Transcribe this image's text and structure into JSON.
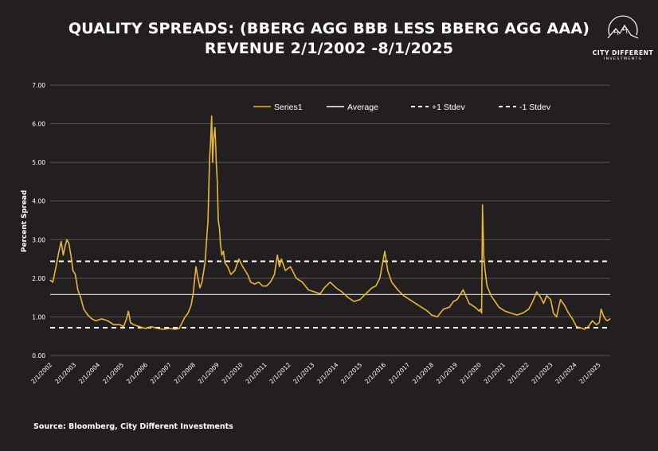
{
  "header": {
    "title_line1": "QUALITY SPREADS: (BBERG AGG BBB LESS BBERG AGG AAA)",
    "title_line2": "REVENUE 2/1/2002 -8/1/2025"
  },
  "logo": {
    "name": "CITY DIFFERENT",
    "sub": "INVESTMENTS"
  },
  "footer": {
    "source": "Source: Bloomberg, City Different Investments"
  },
  "colors": {
    "background": "#231f20",
    "series": "#e8b53a",
    "grid": "#5a5657",
    "reference": "#ffffff"
  },
  "chart_data": {
    "type": "line",
    "title": "QUALITY SPREADS: (BBERG AGG BBB LESS BBERG AGG AAA) REVENUE 2/1/2002 -8/1/2025",
    "xlabel": "",
    "ylabel": "Percent Spread",
    "ylim": [
      0,
      7
    ],
    "xlim": [
      "2/1/2002",
      "8/1/2025"
    ],
    "yticks": [
      "0.00",
      "1.00",
      "2.00",
      "3.00",
      "4.00",
      "5.00",
      "6.00",
      "7.00"
    ],
    "xticks": [
      "2/1/2002",
      "2/1/2003",
      "2/1/2004",
      "2/1/2005",
      "2/1/2006",
      "2/1/2007",
      "2/1/2008",
      "2/1/2009",
      "2/1/2010",
      "2/1/2011",
      "2/1/2012",
      "2/1/2013",
      "2/1/2014",
      "2/1/2015",
      "2/1/2016",
      "2/1/2017",
      "2/1/2018",
      "2/1/2019",
      "2/1/2020",
      "2/1/2021",
      "2/1/2022",
      "2/1/2023",
      "2/1/2024",
      "2/1/2025"
    ],
    "grid": true,
    "legend_position": "top-right",
    "legend": [
      {
        "label": "Series1",
        "style": "solid",
        "color": "#e8b53a"
      },
      {
        "label": "Average",
        "style": "solid",
        "color": "#ffffff"
      },
      {
        "label": "+1 Stdev",
        "style": "dashed",
        "color": "#ffffff"
      },
      {
        "label": "-1 Stdev",
        "style": "dashed",
        "color": "#ffffff"
      }
    ],
    "reference_lines": {
      "Average": 1.58,
      "+1 Stdev": 2.44,
      "-1 Stdev": 0.72
    },
    "series": [
      {
        "name": "Series1",
        "x": [
          "2002-02-01",
          "2002-03-15",
          "2002-05-01",
          "2002-06-15",
          "2002-07-20",
          "2002-08-20",
          "2002-09-20",
          "2002-10-15",
          "2002-11-15",
          "2002-12-15",
          "2003-01-15",
          "2003-02-20",
          "2003-04-01",
          "2003-05-15",
          "2003-07-01",
          "2003-09-01",
          "2003-11-01",
          "2004-01-01",
          "2004-04-01",
          "2004-07-01",
          "2004-10-01",
          "2005-01-01",
          "2005-03-01",
          "2005-04-15",
          "2005-05-15",
          "2005-06-15",
          "2005-08-01",
          "2005-11-01",
          "2006-02-01",
          "2006-05-01",
          "2006-08-01",
          "2006-11-01",
          "2007-02-01",
          "2007-05-01",
          "2007-07-01",
          "2007-08-15",
          "2007-10-01",
          "2007-11-15",
          "2008-01-01",
          "2008-02-01",
          "2008-03-15",
          "2008-04-15",
          "2008-05-15",
          "2008-06-15",
          "2008-08-01",
          "2008-09-15",
          "2008-10-10",
          "2008-10-25",
          "2008-11-10",
          "2008-11-25",
          "2008-12-10",
          "2009-01-01",
          "2009-01-20",
          "2009-02-05",
          "2009-02-20",
          "2009-03-10",
          "2009-03-25",
          "2009-04-15",
          "2009-05-10",
          "2009-06-01",
          "2009-07-15",
          "2009-09-01",
          "2009-11-01",
          "2010-01-01",
          "2010-03-01",
          "2010-05-15",
          "2010-07-01",
          "2010-09-01",
          "2010-11-01",
          "2011-01-01",
          "2011-03-01",
          "2011-05-01",
          "2011-07-01",
          "2011-08-15",
          "2011-09-15",
          "2011-10-15",
          "2011-12-15",
          "2012-03-01",
          "2012-06-01",
          "2012-09-01",
          "2012-12-01",
          "2013-03-01",
          "2013-06-01",
          "2013-08-01",
          "2013-11-01",
          "2014-02-01",
          "2014-05-01",
          "2014-08-01",
          "2014-11-01",
          "2015-02-01",
          "2015-05-01",
          "2015-08-01",
          "2015-10-01",
          "2015-12-01",
          "2016-02-15",
          "2016-04-01",
          "2016-06-01",
          "2016-09-01",
          "2016-12-01",
          "2017-03-01",
          "2017-06-01",
          "2017-09-01",
          "2017-12-01",
          "2018-02-01",
          "2018-05-01",
          "2018-08-01",
          "2018-11-01",
          "2019-01-01",
          "2019-03-01",
          "2019-06-01",
          "2019-09-01",
          "2019-12-01",
          "2020-02-01",
          "2020-02-20",
          "2020-03-10",
          "2020-03-23",
          "2020-04-10",
          "2020-05-01",
          "2020-06-01",
          "2020-08-01",
          "2020-10-01",
          "2020-12-01",
          "2021-03-01",
          "2021-06-01",
          "2021-09-01",
          "2021-12-01",
          "2022-03-01",
          "2022-05-01",
          "2022-07-01",
          "2022-09-01",
          "2022-10-15",
          "2022-12-01",
          "2023-02-01",
          "2023-03-15",
          "2023-05-01",
          "2023-07-01",
          "2023-09-01",
          "2023-11-01",
          "2024-01-01",
          "2024-03-01",
          "2024-05-01",
          "2024-07-01",
          "2024-09-01",
          "2024-11-01",
          "2025-01-01",
          "2025-02-15",
          "2025-03-15",
          "2025-04-15",
          "2025-05-15",
          "2025-06-15",
          "2025-08-01"
        ],
        "values": [
          1.95,
          1.9,
          2.3,
          2.7,
          2.95,
          2.6,
          2.85,
          3.0,
          2.9,
          2.6,
          2.2,
          2.1,
          1.7,
          1.5,
          1.2,
          1.05,
          0.95,
          0.9,
          0.95,
          0.9,
          0.8,
          0.8,
          0.75,
          0.95,
          1.15,
          0.85,
          0.8,
          0.75,
          0.7,
          0.75,
          0.7,
          0.68,
          0.7,
          0.68,
          0.7,
          0.85,
          1.0,
          1.1,
          1.3,
          1.6,
          2.3,
          2.0,
          1.75,
          1.9,
          2.4,
          3.5,
          5.1,
          5.5,
          6.2,
          5.0,
          5.6,
          5.9,
          5.0,
          4.5,
          3.5,
          3.3,
          2.9,
          2.6,
          2.7,
          2.4,
          2.3,
          2.1,
          2.2,
          2.5,
          2.3,
          2.1,
          1.9,
          1.85,
          1.9,
          1.8,
          1.8,
          1.9,
          2.1,
          2.6,
          2.3,
          2.5,
          2.2,
          2.3,
          2.0,
          1.9,
          1.7,
          1.65,
          1.6,
          1.75,
          1.9,
          1.75,
          1.65,
          1.5,
          1.4,
          1.45,
          1.6,
          1.75,
          1.8,
          2.0,
          2.7,
          2.2,
          1.9,
          1.7,
          1.55,
          1.45,
          1.35,
          1.25,
          1.15,
          1.05,
          1.0,
          1.2,
          1.25,
          1.4,
          1.45,
          1.7,
          1.35,
          1.25,
          1.15,
          1.2,
          1.1,
          3.9,
          2.6,
          2.2,
          1.8,
          1.55,
          1.4,
          1.25,
          1.15,
          1.1,
          1.05,
          1.1,
          1.2,
          1.4,
          1.65,
          1.5,
          1.35,
          1.55,
          1.45,
          1.1,
          1.0,
          1.45,
          1.3,
          1.1,
          0.95,
          0.75,
          0.72,
          0.68,
          0.75,
          0.9,
          0.8,
          0.85,
          1.2,
          1.05,
          0.95,
          0.9,
          0.95
        ]
      }
    ]
  }
}
